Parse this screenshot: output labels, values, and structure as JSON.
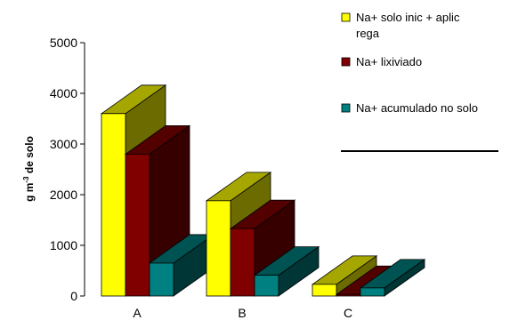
{
  "chart_data": {
    "type": "bar",
    "style": "3d-clustered",
    "categories": [
      "A",
      "B",
      "C"
    ],
    "series": [
      {
        "name": "Na+ solo inic + aplic rega",
        "values": [
          3600,
          1880,
          230
        ],
        "color": "#ffff00"
      },
      {
        "name": "Na+ lixiviado",
        "values": [
          2800,
          1330,
          30
        ],
        "color": "#800000"
      },
      {
        "name": "Na+ acumulado no solo",
        "values": [
          650,
          410,
          160
        ],
        "color": "#008080"
      }
    ],
    "ylabel_main": "g m",
    "ylabel_sup": "-3",
    "ylabel_rest": " de solo",
    "ylim": [
      0,
      5000
    ],
    "yticks": [
      0,
      1000,
      2000,
      3000,
      4000,
      5000
    ],
    "grid": false,
    "legend_position": "right",
    "legend_lines": [
      [
        "Na+ solo inic + aplic",
        "rega"
      ],
      [
        "Na+ lixiviado"
      ],
      [
        "Na+ acumulado no solo"
      ]
    ]
  }
}
